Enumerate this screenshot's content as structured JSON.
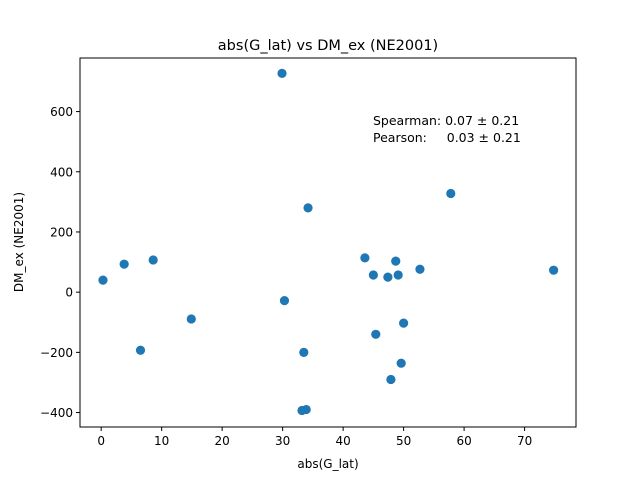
{
  "chart_data": {
    "type": "scatter",
    "title": "abs(G_lat) vs DM_ex (NE2001)",
    "xlabel": "abs(G_lat)",
    "ylabel": "DM_ex (NE2001)",
    "xlim": [
      -3.5,
      78.5
    ],
    "ylim": [
      -448,
      778
    ],
    "xticks": [
      0,
      10,
      20,
      30,
      40,
      50,
      60,
      70
    ],
    "yticks": [
      -400,
      -200,
      0,
      200,
      400,
      600
    ],
    "grid": false,
    "marker_color": "#1f77b4",
    "annotation": {
      "line1": "Spearman: 0.07 ± 0.21",
      "line2": "Pearson:     0.03 ± 0.21"
    },
    "points": [
      {
        "x": 0.3,
        "y": 40
      },
      {
        "x": 3.8,
        "y": 93
      },
      {
        "x": 6.5,
        "y": -193
      },
      {
        "x": 8.6,
        "y": 107
      },
      {
        "x": 14.9,
        "y": -89
      },
      {
        "x": 29.9,
        "y": 727
      },
      {
        "x": 30.3,
        "y": -28
      },
      {
        "x": 33.2,
        "y": -393
      },
      {
        "x": 33.5,
        "y": -200
      },
      {
        "x": 33.9,
        "y": -390
      },
      {
        "x": 34.2,
        "y": 280
      },
      {
        "x": 43.6,
        "y": 114
      },
      {
        "x": 45.0,
        "y": 57
      },
      {
        "x": 45.4,
        "y": -140
      },
      {
        "x": 47.4,
        "y": 50
      },
      {
        "x": 47.9,
        "y": -290
      },
      {
        "x": 48.7,
        "y": 103
      },
      {
        "x": 49.1,
        "y": 57
      },
      {
        "x": 49.6,
        "y": -236
      },
      {
        "x": 50.0,
        "y": -103
      },
      {
        "x": 52.7,
        "y": 76
      },
      {
        "x": 57.8,
        "y": 328
      },
      {
        "x": 74.8,
        "y": 73
      }
    ]
  }
}
